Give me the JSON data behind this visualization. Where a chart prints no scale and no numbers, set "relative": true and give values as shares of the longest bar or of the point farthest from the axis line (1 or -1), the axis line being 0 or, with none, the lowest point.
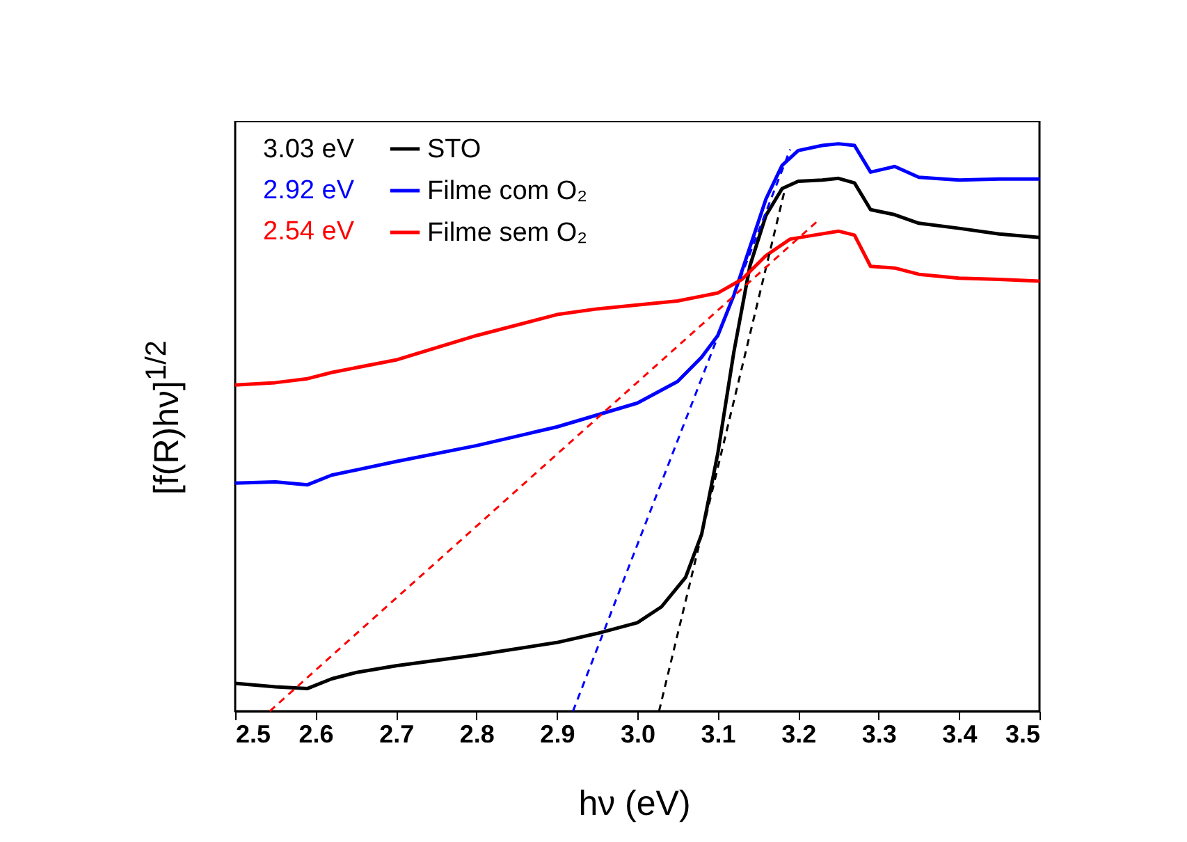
{
  "chart_data": {
    "type": "line",
    "relative": true,
    "xlabel": "hν (eV)",
    "ylabel": "[f(R)hν]$^{1/2}$",
    "xlim": [
      2.5,
      3.5
    ],
    "xticks": [
      2.5,
      2.6,
      2.7,
      2.8,
      2.9,
      {
        "value": 3,
        "label": "3.0"
      },
      3.1,
      3.2,
      3.3,
      3.4,
      3.5
    ],
    "tick_labels": "x",
    "grid": false,
    "legend": "top left",
    "annotations": [
      "3.03 eV",
      "2.92 eV",
      "2.54 eV"
    ],
    "series": [
      {
        "name": "STO",
        "color": "#000000",
        "x": [
          2.5,
          2.55,
          2.59,
          2.62,
          2.65,
          2.7,
          2.8,
          2.9,
          2.95,
          3.0,
          3.03,
          3.06,
          3.08,
          3.1,
          3.12,
          3.14,
          3.16,
          3.18,
          3.2,
          3.23,
          3.25,
          3.27,
          3.29,
          3.32,
          3.35,
          3.4,
          3.45,
          3.5
        ],
        "values": [
          0.049,
          0.043,
          0.04,
          0.057,
          0.068,
          0.08,
          0.099,
          0.121,
          0.137,
          0.156,
          0.184,
          0.236,
          0.312,
          0.454,
          0.633,
          0.785,
          0.874,
          0.921,
          0.934,
          0.936,
          0.939,
          0.931,
          0.884,
          0.875,
          0.86,
          0.851,
          0.841,
          0.835
        ]
      },
      {
        "name": "Filme com O₂",
        "color": "#0000ff",
        "x": [
          2.5,
          2.55,
          2.59,
          2.62,
          2.7,
          2.8,
          2.9,
          3.0,
          3.05,
          3.08,
          3.1,
          3.12,
          3.14,
          3.16,
          3.18,
          3.2,
          3.23,
          3.25,
          3.27,
          3.29,
          3.32,
          3.35,
          3.4,
          3.45,
          3.5
        ],
        "values": [
          0.402,
          0.404,
          0.399,
          0.416,
          0.44,
          0.468,
          0.501,
          0.543,
          0.581,
          0.624,
          0.662,
          0.733,
          0.818,
          0.903,
          0.962,
          0.988,
          0.997,
          1.0,
          0.997,
          0.95,
          0.96,
          0.941,
          0.936,
          0.938,
          0.938
        ]
      },
      {
        "name": "Filme sem O₂",
        "color": "#ff0000",
        "x": [
          2.5,
          2.55,
          2.59,
          2.62,
          2.7,
          2.8,
          2.9,
          2.95,
          3.0,
          3.05,
          3.1,
          3.13,
          3.16,
          3.19,
          3.22,
          3.25,
          3.27,
          3.29,
          3.32,
          3.35,
          3.4,
          3.45,
          3.5
        ],
        "values": [
          0.575,
          0.579,
          0.586,
          0.597,
          0.619,
          0.662,
          0.699,
          0.709,
          0.716,
          0.723,
          0.737,
          0.761,
          0.803,
          0.832,
          0.839,
          0.846,
          0.839,
          0.784,
          0.781,
          0.77,
          0.763,
          0.761,
          0.758
        ]
      },
      {
        "type": "line",
        "line_style": "dashed",
        "color": "#000000",
        "x": [
          3.027,
          3.183
        ],
        "values": [
          0,
          0.917
        ]
      },
      {
        "type": "line",
        "line_style": "dashed",
        "color": "#0000ff",
        "x": [
          2.92,
          3.19
        ],
        "values": [
          0,
          0.99
        ]
      },
      {
        "type": "line",
        "line_style": "dashed",
        "color": "#ff0000",
        "x": [
          2.543,
          3.225
        ],
        "values": [
          0,
          0.865
        ]
      }
    ]
  }
}
